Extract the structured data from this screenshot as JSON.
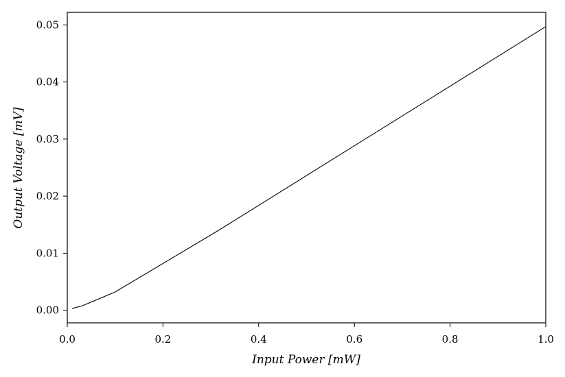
{
  "chart_data": {
    "type": "line",
    "xlabel": "Input Power [mW]",
    "ylabel": "Output Voltage [mV]",
    "xlim": [
      0.0,
      1.0
    ],
    "ylim": [
      -0.0022,
      0.0522
    ],
    "xticks": [
      0.0,
      0.2,
      0.4,
      0.6,
      0.8,
      1.0
    ],
    "xtick_labels": [
      "0.0",
      "0.2",
      "0.4",
      "0.6",
      "0.8",
      "1.0"
    ],
    "yticks": [
      0.0,
      0.01,
      0.02,
      0.03,
      0.04,
      0.05
    ],
    "ytick_labels": [
      "0.00",
      "0.01",
      "0.02",
      "0.03",
      "0.04",
      "0.05"
    ],
    "grid": false,
    "series": [
      {
        "color": "#000000",
        "x": [
          0.01,
          0.0316,
          0.1,
          0.316,
          1.0
        ],
        "y": [
          0.0003,
          0.0008,
          0.0032,
          0.014,
          0.0497
        ]
      }
    ]
  }
}
